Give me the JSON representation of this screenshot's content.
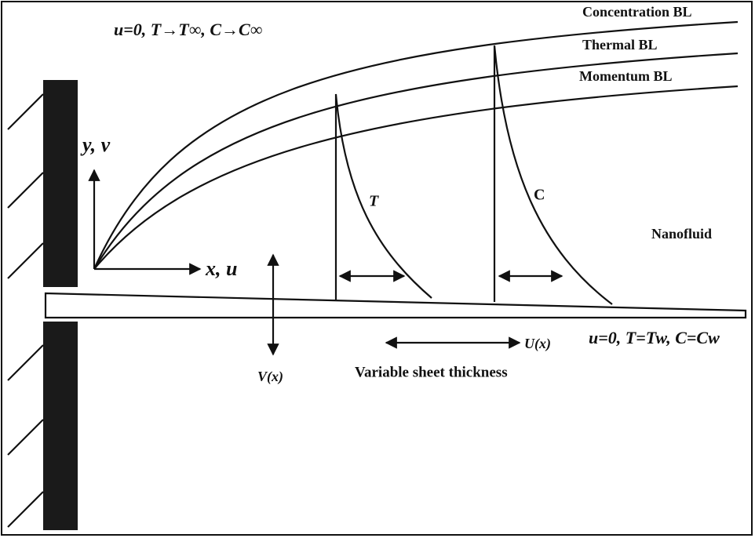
{
  "ambient_condition": "u=0, T→T∞, C→C∞",
  "boundary_layers": [
    "Concentration BL",
    "Thermal BL",
    "Momentum BL"
  ],
  "axes": {
    "y": "y, v",
    "x": "x, u"
  },
  "profiles": [
    "T",
    "C"
  ],
  "fluid": "Nanofluid",
  "velocities": {
    "U": "U(x)",
    "V": "V(x)"
  },
  "wall_condition": "u=0, T=Tw, C=Cw",
  "sheet": "Variable sheet thickness"
}
